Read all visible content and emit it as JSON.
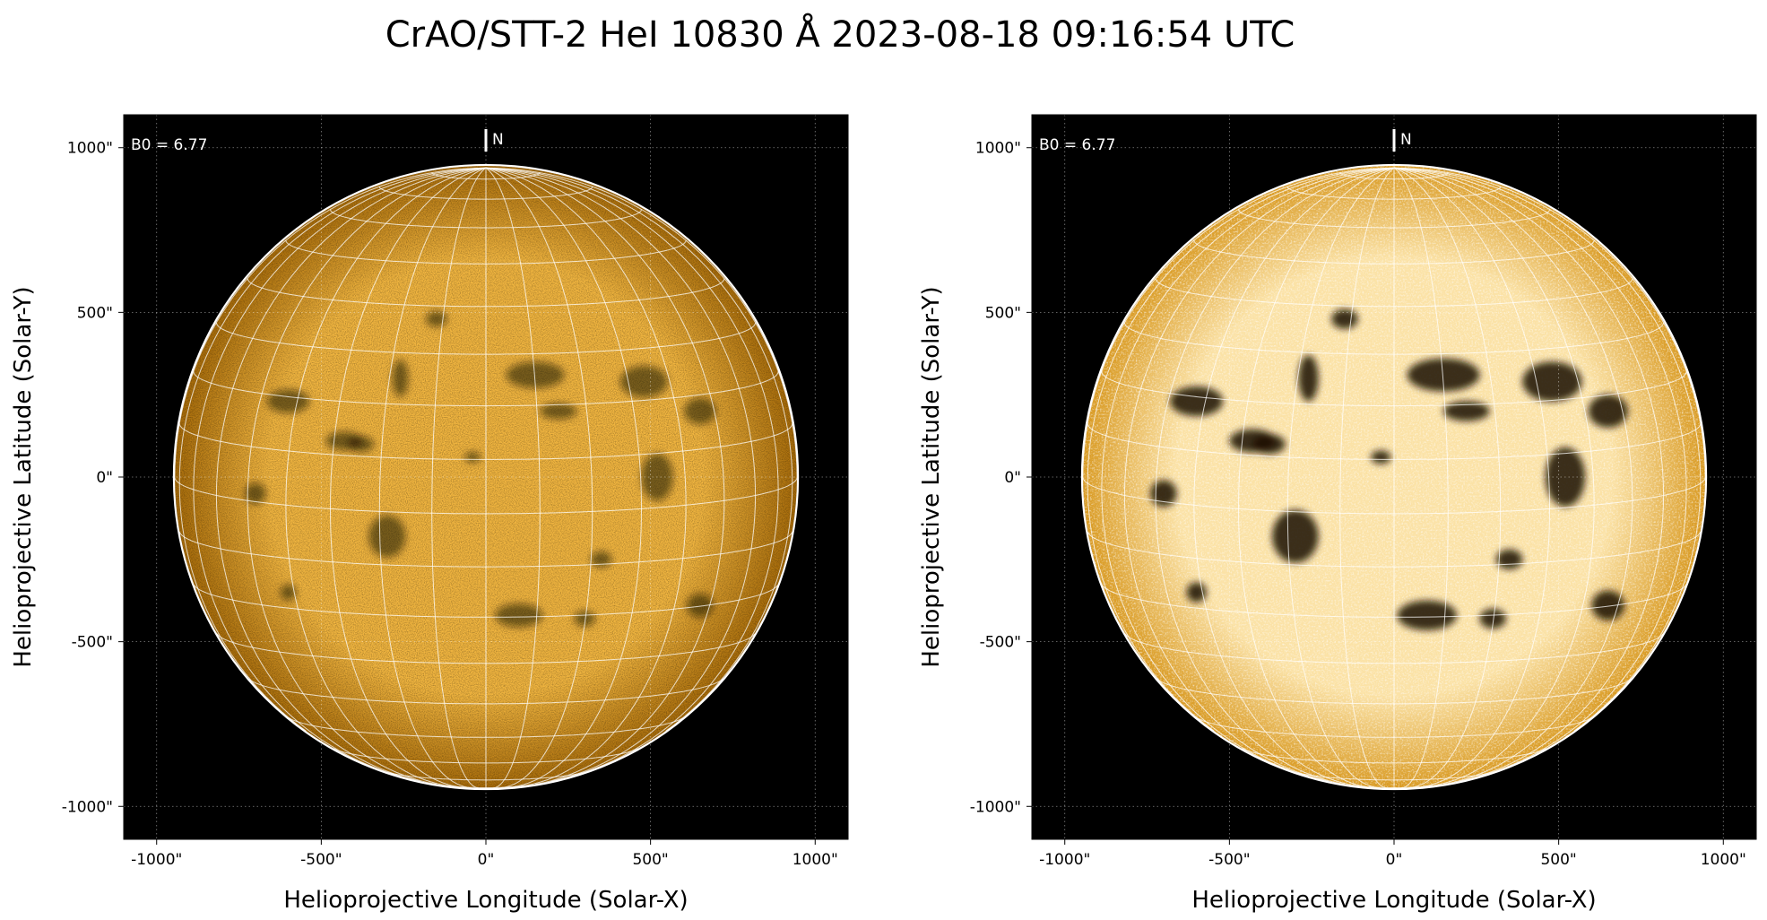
{
  "figure": {
    "title": "CrAO/STT-2 HeI 10830 Å 2023-08-18 09:16:54 UTC"
  },
  "panels": [
    {
      "id": "left",
      "xlabel": "Helioprojective Longitude (Solar-X)",
      "ylabel": "Helioprojective Latitude (Solar-Y)",
      "b0_label": "B0 = 6.77",
      "north_label": "N",
      "xticks": [
        {
          "v": -1000,
          "label": "-1000\""
        },
        {
          "v": -500,
          "label": "-500\""
        },
        {
          "v": 0,
          "label": "0\""
        },
        {
          "v": 500,
          "label": "500\""
        },
        {
          "v": 1000,
          "label": "1000\""
        }
      ],
      "yticks": [
        {
          "v": 1000,
          "label": "1000\""
        },
        {
          "v": 500,
          "label": "500\""
        },
        {
          "v": 0,
          "label": "0\""
        },
        {
          "v": -500,
          "label": "-500\""
        },
        {
          "v": -1000,
          "label": "-1000\""
        }
      ],
      "xlim": [
        -1100,
        1100
      ],
      "ylim": [
        -1100,
        1100
      ],
      "solar_radius_arcsec": 945,
      "disk_color_center": "#f2b640",
      "disk_color_edge": "#a86c0a",
      "scaling": "linear"
    },
    {
      "id": "right",
      "xlabel": "Helioprojective Longitude (Solar-X)",
      "ylabel": "Helioprojective Latitude (Solar-Y)",
      "b0_label": "B0 = 6.77",
      "north_label": "N",
      "xticks": [
        {
          "v": -1000,
          "label": "-1000\""
        },
        {
          "v": -500,
          "label": "-500\""
        },
        {
          "v": 0,
          "label": "0\""
        },
        {
          "v": 500,
          "label": "500\""
        },
        {
          "v": 1000,
          "label": "1000\""
        }
      ],
      "yticks": [
        {
          "v": 1000,
          "label": "1000\""
        },
        {
          "v": 500,
          "label": "500\""
        },
        {
          "v": 0,
          "label": "0\""
        },
        {
          "v": -500,
          "label": "-500\""
        },
        {
          "v": -1000,
          "label": "-1000\""
        }
      ],
      "xlim": [
        -1100,
        1100
      ],
      "ylim": [
        -1100,
        1100
      ],
      "solar_radius_arcsec": 945,
      "disk_color_center": "#fbe2a6",
      "disk_color_edge": "#d99a22",
      "scaling": "enhanced"
    }
  ],
  "colors": {
    "background": "#000000",
    "limb": "#ffffff",
    "grid": "#ffffff",
    "dark_filament": "#1a0c00"
  },
  "dark_features_arcsec": [
    [
      -600,
      230,
      80,
      45
    ],
    [
      -430,
      110,
      70,
      35
    ],
    [
      -260,
      300,
      30,
      70
    ],
    [
      -40,
      60,
      30,
      20
    ],
    [
      150,
      310,
      110,
      50
    ],
    [
      480,
      290,
      90,
      60
    ],
    [
      650,
      200,
      60,
      50
    ],
    [
      220,
      200,
      70,
      30
    ],
    [
      -300,
      -180,
      70,
      80
    ],
    [
      -380,
      100,
      50,
      30
    ],
    [
      100,
      -420,
      90,
      45
    ],
    [
      300,
      -430,
      40,
      30
    ],
    [
      650,
      -390,
      50,
      45
    ],
    [
      520,
      0,
      60,
      90
    ],
    [
      -700,
      -50,
      40,
      40
    ],
    [
      -150,
      480,
      40,
      30
    ],
    [
      350,
      -250,
      40,
      30
    ],
    [
      -600,
      -350,
      30,
      30
    ]
  ]
}
